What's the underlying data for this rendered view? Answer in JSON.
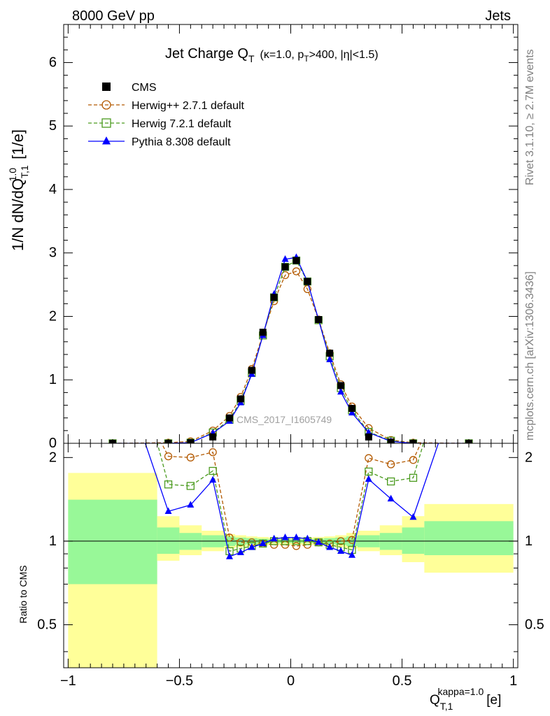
{
  "header": {
    "left": "8000 GeV pp",
    "right": "Jets"
  },
  "side_labels": {
    "upper": "Rivet 3.1.10, ≥ 2.7M events",
    "lower": "mcplots.cern.ch [arXiv:1306.3436]"
  },
  "watermark": "CMS_2017_I1605749",
  "chart_data": [
    {
      "type": "line",
      "panel": "main",
      "title": "Jet Charge Q_T (κ=1.0, p_T>400, |η|<1.5)",
      "xlabel": "Q_T,1^kappa=1.0 [e]",
      "ylabel": "1/N dN/dQ_T,1^1.0 [1/e]",
      "xlim": [
        -1.02,
        1.02
      ],
      "ylim": [
        0,
        6.6
      ],
      "yticks": [
        0,
        1,
        2,
        3,
        4,
        5,
        6
      ],
      "legend_position": "top-left",
      "grid": false,
      "x": [
        -0.8,
        -0.55,
        -0.45,
        -0.35,
        -0.275,
        -0.225,
        -0.175,
        -0.125,
        -0.075,
        -0.025,
        0.025,
        0.075,
        0.125,
        0.175,
        0.225,
        0.275,
        0.35,
        0.45,
        0.55,
        0.8
      ],
      "series": [
        {
          "name": "CMS",
          "color": "#000000",
          "marker": "filled-square",
          "line": "none",
          "values": [
            0.0,
            0.0,
            0.01,
            0.1,
            0.4,
            0.7,
            1.15,
            1.75,
            2.3,
            2.78,
            2.88,
            2.55,
            1.95,
            1.42,
            0.91,
            0.55,
            0.1,
            0.02,
            0.0,
            0.0
          ]
        },
        {
          "name": "Herwig++ 2.7.1 default",
          "color": "#b35900",
          "marker": "open-circle",
          "line": "dashed",
          "values": [
            0.0,
            0.01,
            0.03,
            0.2,
            0.43,
            0.73,
            1.17,
            1.72,
            2.24,
            2.65,
            2.71,
            2.43,
            1.95,
            1.42,
            0.93,
            0.58,
            0.24,
            0.05,
            0.01,
            0.0
          ]
        },
        {
          "name": "Herwig 7.2.1 default",
          "color": "#4a9a1e",
          "marker": "open-square",
          "line": "dashed",
          "values": [
            0.0,
            0.0,
            0.01,
            0.17,
            0.37,
            0.67,
            1.11,
            1.7,
            2.3,
            2.78,
            2.88,
            2.55,
            1.94,
            1.37,
            0.87,
            0.52,
            0.18,
            0.04,
            0.0,
            0.0
          ]
        },
        {
          "name": "Pythia 8.308 default",
          "color": "#0000ff",
          "marker": "filled-triangle",
          "line": "solid",
          "values": [
            0.0,
            0.0,
            0.01,
            0.16,
            0.35,
            0.64,
            1.09,
            1.7,
            2.35,
            2.9,
            2.93,
            2.55,
            1.95,
            1.32,
            0.81,
            0.48,
            0.17,
            0.03,
            0.0,
            0.0
          ]
        }
      ]
    },
    {
      "type": "line",
      "panel": "ratio",
      "ylabel": "Ratio to CMS",
      "xlabel": "Q_T,1^kappa=1.0 [e]",
      "xlim": [
        -1.02,
        1.02
      ],
      "ylim": [
        0.35,
        2.25
      ],
      "scale": "log",
      "yticks": [
        0.5,
        1,
        2
      ],
      "xticks": [
        -1,
        -0.5,
        0,
        0.5,
        1
      ],
      "reference_line": 1,
      "uncertainty_bands": {
        "bins": [
          [
            -1.0,
            -0.6
          ],
          [
            -0.6,
            -0.5
          ],
          [
            -0.5,
            -0.4
          ],
          [
            -0.4,
            -0.3
          ],
          [
            -0.3,
            -0.25
          ],
          [
            -0.25,
            -0.2
          ],
          [
            -0.2,
            -0.15
          ],
          [
            -0.15,
            -0.1
          ],
          [
            -0.1,
            -0.05
          ],
          [
            -0.05,
            0.0
          ],
          [
            0.0,
            0.05
          ],
          [
            0.05,
            0.1
          ],
          [
            0.1,
            0.15
          ],
          [
            0.15,
            0.2
          ],
          [
            0.2,
            0.25
          ],
          [
            0.25,
            0.3
          ],
          [
            0.3,
            0.4
          ],
          [
            0.4,
            0.5
          ],
          [
            0.5,
            0.6
          ],
          [
            0.6,
            1.0
          ]
        ],
        "stat": {
          "color": "#98f898",
          "lo": [
            0.7,
            0.9,
            0.93,
            0.95,
            0.96,
            0.97,
            0.975,
            0.98,
            0.985,
            0.985,
            0.985,
            0.985,
            0.98,
            0.975,
            0.97,
            0.96,
            0.95,
            0.93,
            0.9,
            0.89
          ],
          "hi": [
            1.41,
            1.12,
            1.07,
            1.05,
            1.04,
            1.03,
            1.025,
            1.02,
            1.015,
            1.015,
            1.015,
            1.015,
            1.02,
            1.025,
            1.03,
            1.04,
            1.05,
            1.07,
            1.12,
            1.18
          ]
        },
        "total": {
          "color": "#ffff99",
          "lo": [
            0.35,
            0.85,
            0.89,
            0.92,
            0.94,
            0.95,
            0.96,
            0.965,
            0.97,
            0.97,
            0.97,
            0.97,
            0.965,
            0.96,
            0.95,
            0.94,
            0.92,
            0.89,
            0.84,
            0.77
          ],
          "hi": [
            1.76,
            1.23,
            1.14,
            1.09,
            1.06,
            1.05,
            1.04,
            1.035,
            1.03,
            1.03,
            1.03,
            1.03,
            1.035,
            1.04,
            1.05,
            1.07,
            1.09,
            1.14,
            1.23,
            1.36
          ]
        }
      },
      "x": [
        -0.6,
        -0.55,
        -0.45,
        -0.35,
        -0.275,
        -0.225,
        -0.175,
        -0.125,
        -0.075,
        -0.025,
        0.025,
        0.075,
        0.125,
        0.175,
        0.225,
        0.275,
        0.35,
        0.45,
        0.55,
        0.6
      ],
      "series": [
        {
          "name": "Herwig++ 2.7.1 default",
          "color": "#b35900",
          "x": [
            -0.62,
            -0.55,
            -0.45,
            -0.35,
            -0.275,
            -0.225,
            -0.175,
            -0.125,
            -0.075,
            -0.025,
            0.025,
            0.075,
            0.125,
            0.175,
            0.225,
            0.275,
            0.35,
            0.45,
            0.55,
            0.62
          ],
          "values": [
            2.6,
            2.02,
            2.0,
            2.09,
            1.03,
            0.99,
            0.99,
            0.98,
            0.97,
            0.97,
            0.96,
            0.97,
            0.99,
            0.98,
            1.0,
            1.01,
            1.99,
            1.89,
            1.96,
            2.6
          ]
        },
        {
          "name": "Herwig 7.2.1 default",
          "color": "#4a9a1e",
          "x": [
            -0.62,
            -0.55,
            -0.45,
            -0.35,
            -0.275,
            -0.225,
            -0.175,
            -0.125,
            -0.075,
            -0.025,
            0.025,
            0.075,
            0.125,
            0.175,
            0.225,
            0.275,
            0.35,
            0.45,
            0.55,
            0.62
          ],
          "values": [
            2.6,
            1.6,
            1.58,
            1.79,
            0.92,
            0.94,
            0.96,
            0.98,
            1.0,
            1.0,
            1.0,
            1.0,
            0.99,
            0.97,
            0.95,
            0.93,
            1.78,
            1.64,
            1.69,
            2.6
          ]
        },
        {
          "name": "Pythia 8.308 default",
          "color": "#0000ff",
          "x": [
            -0.68,
            -0.55,
            -0.45,
            -0.35,
            -0.275,
            -0.225,
            -0.175,
            -0.125,
            -0.075,
            -0.025,
            0.025,
            0.075,
            0.125,
            0.175,
            0.225,
            0.275,
            0.35,
            0.45,
            0.55,
            0.69
          ],
          "values": [
            2.6,
            1.28,
            1.35,
            1.66,
            0.88,
            0.91,
            0.95,
            0.98,
            1.02,
            1.03,
            1.03,
            1.02,
            0.99,
            0.95,
            0.92,
            0.89,
            1.67,
            1.42,
            1.22,
            2.6
          ]
        }
      ]
    }
  ]
}
